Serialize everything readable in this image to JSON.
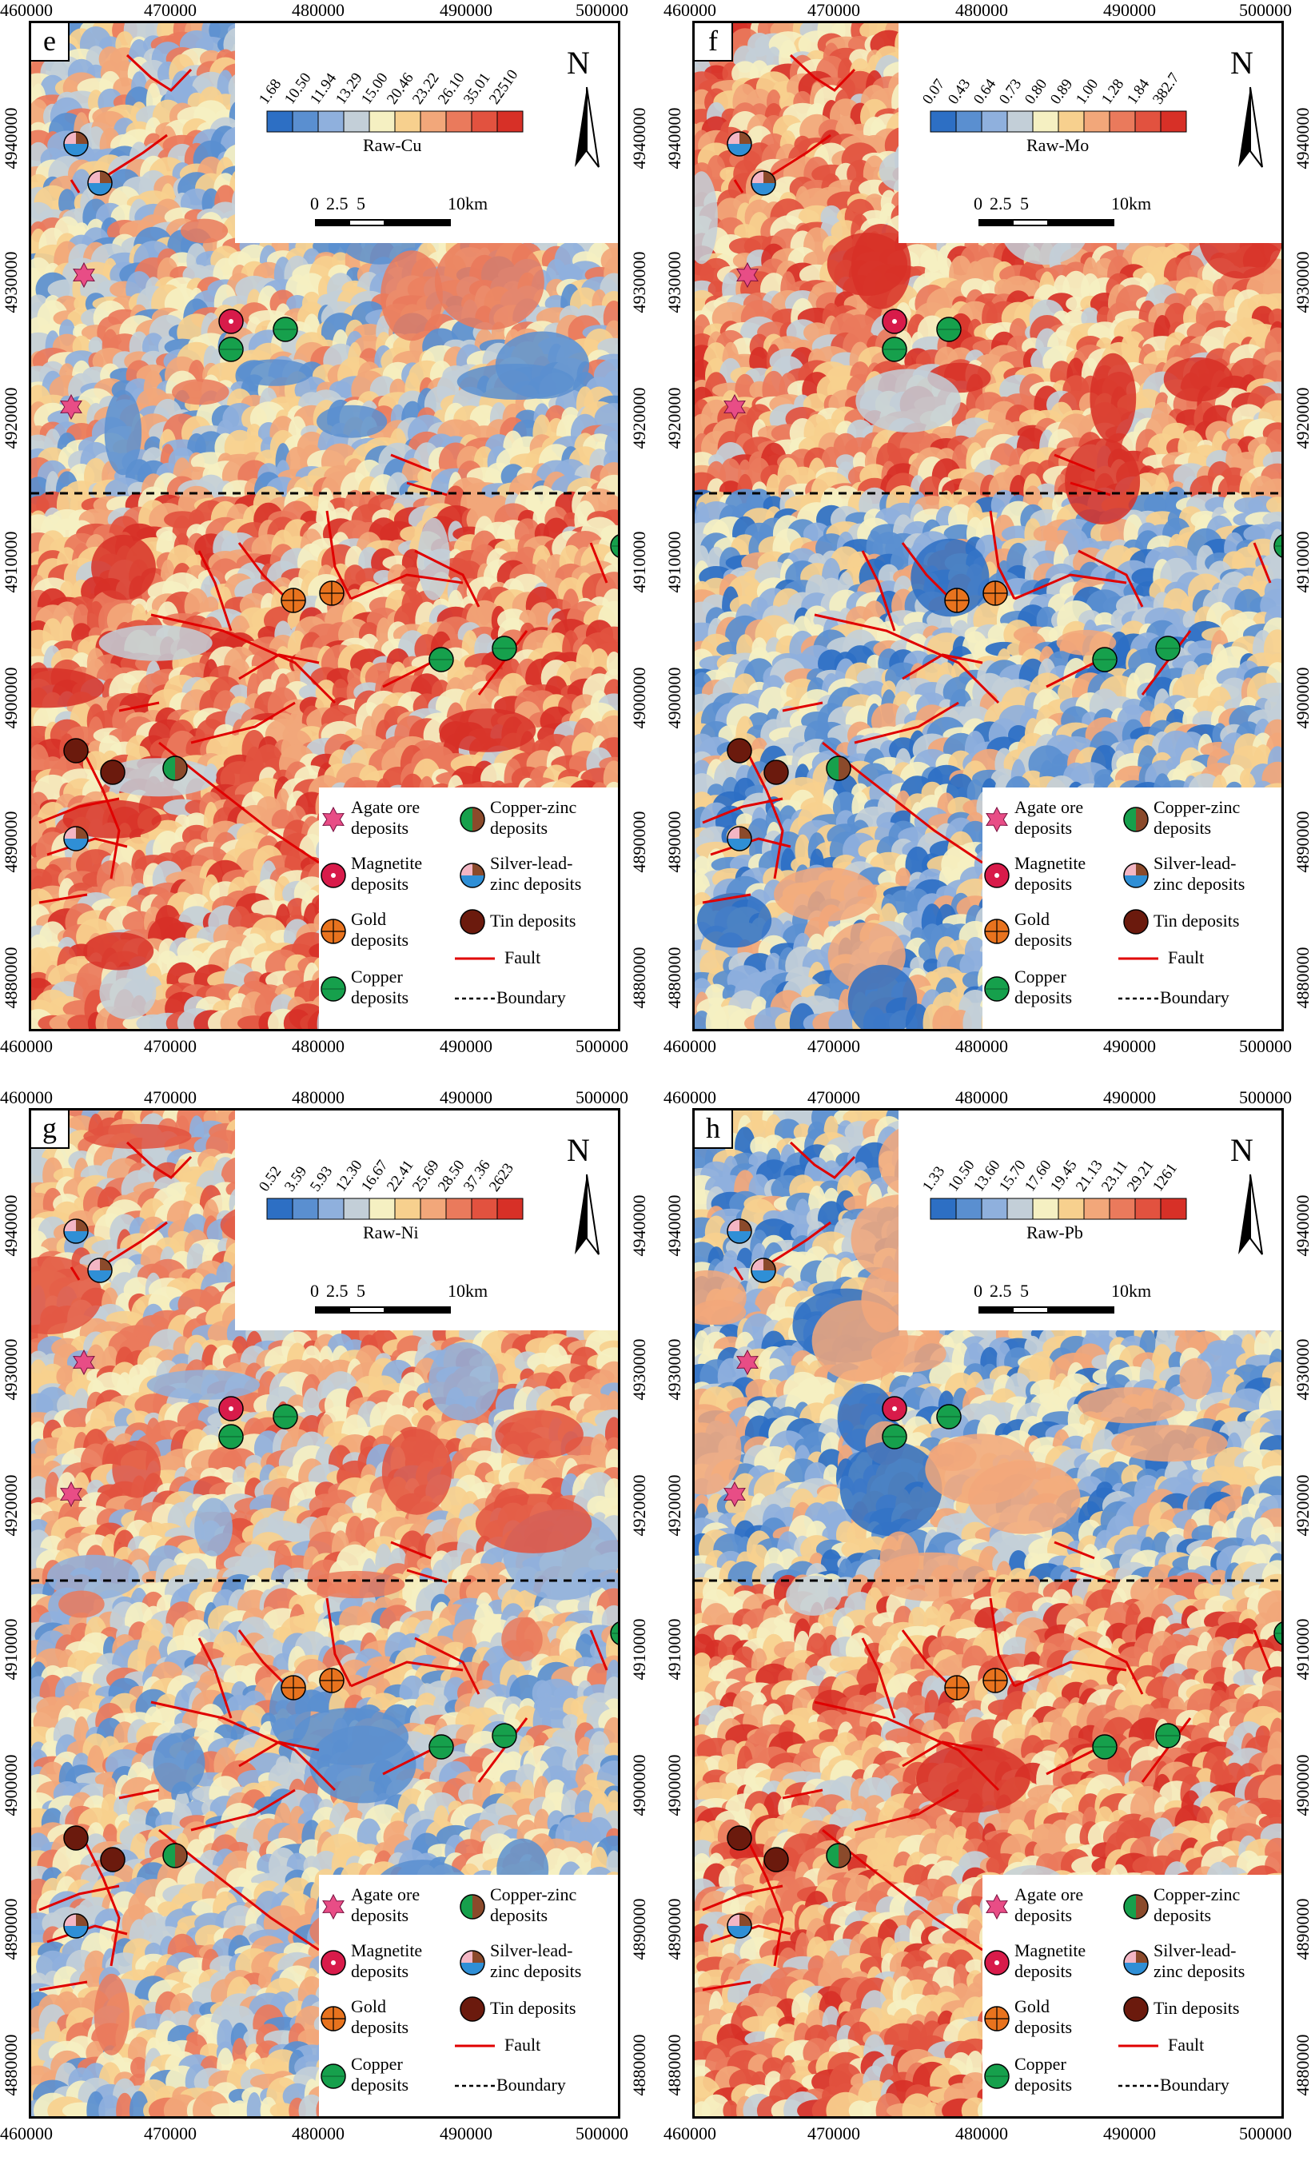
{
  "x_ticks": [
    "460000",
    "470000",
    "480000",
    "490000",
    "500000"
  ],
  "y_ticks": [
    "4940000",
    "4930000",
    "4920000",
    "4910000",
    "4900000",
    "4890000",
    "4880000"
  ],
  "scale": {
    "ticks": [
      "0",
      "2.5",
      "5",
      "10km"
    ]
  },
  "north_label": "N",
  "legend": {
    "agate": "Agate ore deposits",
    "agate_l1": "Agate ore",
    "agate_l2": "deposits",
    "copper_zinc_l1": "Copper-zinc",
    "copper_zinc_l2": "deposits",
    "magnetite_l1": "Magnetite",
    "magnetite_l2": "deposits",
    "silver_l1": "Silver-lead-",
    "silver_l2": "zinc deposits",
    "gold_l1": "Gold",
    "gold_l2": "deposits",
    "tin": "Tin deposits",
    "copper_l1": "Copper",
    "copper_l2": "deposits",
    "fault": "Fault",
    "boundary": "Boundary"
  },
  "colors": {
    "ramp": [
      "#2d6fc4",
      "#5a8fd0",
      "#8fb0dd",
      "#c3cfd8",
      "#f5f0c2",
      "#f7d08e",
      "#f2a77a",
      "#ea7a5c",
      "#e2523f",
      "#d73027"
    ],
    "fault": "#e00000",
    "agate": "#e84d86",
    "magnetite": "#d81b4a",
    "gold": "#e8731e",
    "copper": "#16a04c",
    "tin": "#6b1a0d"
  },
  "panels": [
    {
      "id": "e",
      "letter": "e",
      "title": "Raw-Cu",
      "scale_values": [
        "1.68",
        "10.50",
        "11.94",
        "13.29",
        "15.00",
        "20.46",
        "23.22",
        "26.10",
        "35.01",
        "22510"
      ]
    },
    {
      "id": "f",
      "letter": "f",
      "title": "Raw-Mo",
      "scale_values": [
        "0.07",
        "0.43",
        "0.64",
        "0.73",
        "0.80",
        "0.89",
        "1.00",
        "1.28",
        "1.84",
        "382.7"
      ]
    },
    {
      "id": "g",
      "letter": "g",
      "title": "Raw-Ni",
      "scale_values": [
        "0.52",
        "3.59",
        "5.93",
        "12.30",
        "16.67",
        "22.41",
        "25.69",
        "28.50",
        "37.36",
        "2623"
      ]
    },
    {
      "id": "h",
      "letter": "h",
      "title": "Raw-Pb",
      "scale_values": [
        "1.33",
        "10.50",
        "13.60",
        "15.70",
        "17.60",
        "19.45",
        "21.13",
        "23.11",
        "29.21",
        "1261"
      ]
    }
  ]
}
